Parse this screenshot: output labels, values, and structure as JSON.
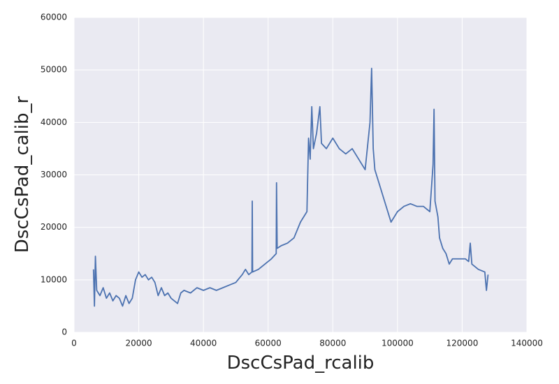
{
  "chart_data": {
    "type": "line",
    "xlabel": "DscCsPad_rcalib",
    "ylabel": "DscCsPad_calib_r",
    "xlim": [
      0,
      140000
    ],
    "xticks": [
      0,
      20000,
      40000,
      60000,
      80000,
      100000,
      120000,
      140000
    ],
    "ylim": [
      0,
      60000
    ],
    "yticks": [
      0,
      10000,
      20000,
      30000,
      40000,
      50000,
      60000
    ],
    "grid": true,
    "series": [
      {
        "color": "#4c72b0",
        "x": [
          6000,
          6300,
          6600,
          7000,
          8000,
          9000,
          10000,
          11000,
          12000,
          13000,
          14000,
          15000,
          16000,
          17000,
          18000,
          19000,
          20000,
          21000,
          22000,
          23000,
          24000,
          25000,
          26000,
          27000,
          28000,
          29000,
          30000,
          31000,
          32000,
          33000,
          34000,
          36000,
          38000,
          40000,
          42000,
          44000,
          46000,
          48000,
          50000,
          52000,
          53000,
          54000,
          55000,
          55100,
          55200,
          57000,
          59000,
          61000,
          62500,
          62600,
          62800,
          64000,
          66000,
          68000,
          70000,
          72000,
          72500,
          73000,
          73500,
          74000,
          75000,
          76000,
          76500,
          78000,
          80000,
          82000,
          84000,
          86000,
          88000,
          90000,
          91500,
          92000,
          92500,
          93000,
          94000,
          96000,
          98000,
          100000,
          102000,
          104000,
          106000,
          108000,
          110000,
          111000,
          111300,
          111600,
          112500,
          113000,
          114000,
          115000,
          116000,
          117000,
          119000,
          121000,
          122000,
          122500,
          123000,
          125000,
          127000,
          127500,
          128000
        ],
        "values": [
          12000,
          5000,
          14500,
          8000,
          7000,
          8500,
          6500,
          7500,
          6000,
          7000,
          6500,
          5000,
          7000,
          5500,
          6500,
          10000,
          11500,
          10500,
          11000,
          10000,
          10500,
          9500,
          7000,
          8500,
          7000,
          7500,
          6500,
          6000,
          5500,
          7500,
          8000,
          7500,
          8500,
          8000,
          8500,
          8000,
          8500,
          9000,
          9500,
          11000,
          12000,
          11000,
          11500,
          25000,
          11500,
          12000,
          13000,
          14000,
          15000,
          28500,
          16000,
          16500,
          17000,
          18000,
          21000,
          23000,
          37000,
          33000,
          43000,
          35000,
          38000,
          43000,
          36000,
          35000,
          37000,
          35000,
          34000,
          35000,
          33000,
          31000,
          40000,
          50300,
          35000,
          31000,
          29000,
          25000,
          21000,
          23000,
          24000,
          24500,
          24000,
          24000,
          23000,
          32000,
          42500,
          25000,
          22000,
          18000,
          16000,
          15000,
          13000,
          14000,
          14000,
          14000,
          13500,
          17000,
          13000,
          12000,
          11500,
          8000,
          11000
        ]
      }
    ]
  }
}
